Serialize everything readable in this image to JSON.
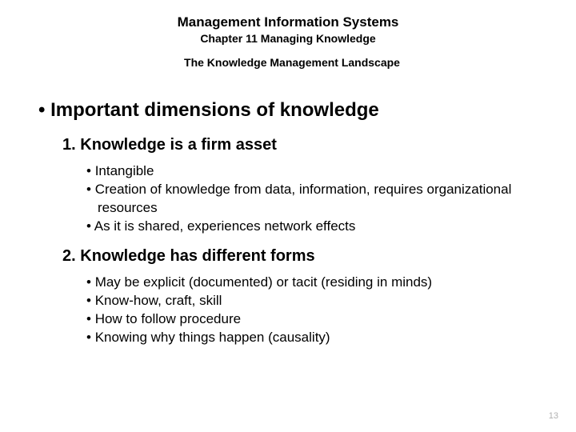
{
  "header": {
    "title": "Management Information Systems",
    "subtitle": "Chapter 11 Managing Knowledge",
    "section": "The Knowledge Management Landscape"
  },
  "main_heading": "Important dimensions of knowledge",
  "items": [
    {
      "num": "1.",
      "heading": "Knowledge is a firm asset",
      "subs": [
        "Intangible",
        "Creation of knowledge from data, information, requires organizational resources",
        "As it is shared, experiences network effects"
      ]
    },
    {
      "num": "2.",
      "heading": "Knowledge has different forms",
      "subs": [
        "May be explicit (documented) or tacit (residing in minds)",
        "Know-how, craft, skill",
        "How to follow procedure",
        "Knowing why things happen (causality)"
      ]
    }
  ],
  "page_number": "13"
}
